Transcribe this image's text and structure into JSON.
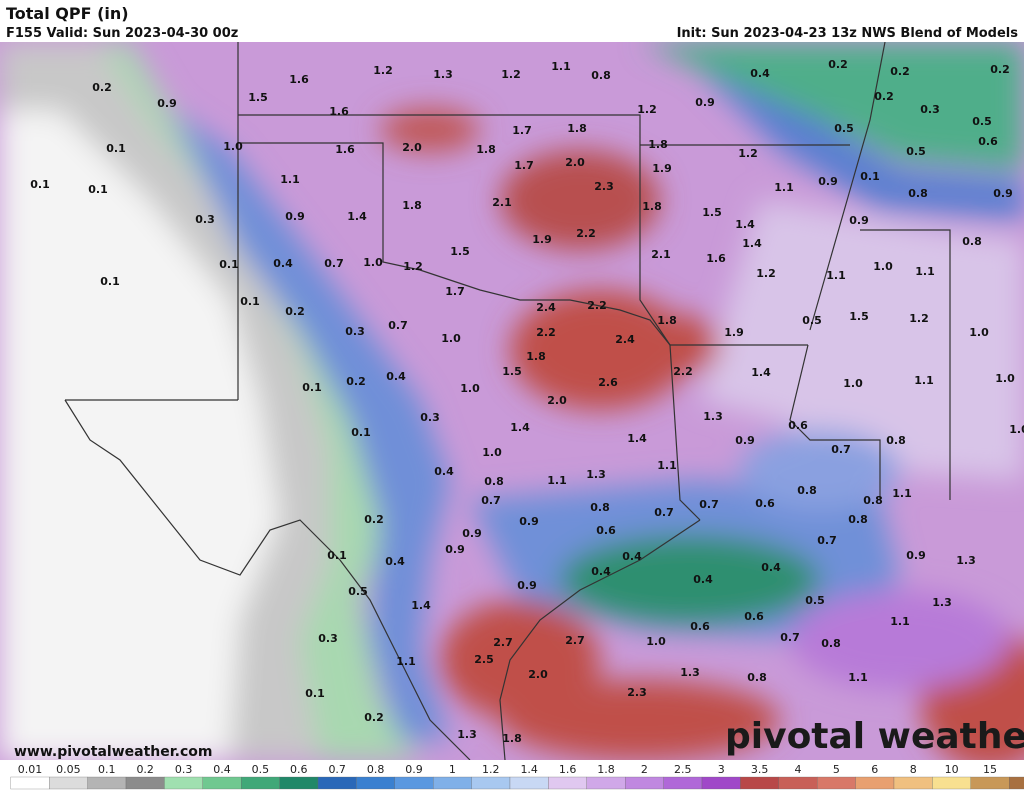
{
  "header": {
    "title": "Total QPF (in)",
    "valid": "F155 Valid: Sun 2023-04-30 00z",
    "init": "Init: Sun 2023-04-23 13z NWS Blend of Models"
  },
  "map": {
    "labels": [
      "0.2",
      "0.9",
      "1.5",
      "1.6",
      "1.2",
      "1.3",
      "1.2",
      "1.1",
      "0.8",
      "0.4",
      "0.2",
      "0.2",
      "0.2",
      "1.6",
      "1.2",
      "0.9",
      "0.2",
      "0.3",
      "0.5",
      "0.1",
      "1.0",
      "1.6",
      "2.0",
      "1.8",
      "1.7",
      "1.8",
      "1.8",
      "0.5",
      "0.5",
      "0.6",
      "1.2",
      "1.7",
      "2.0",
      "1.9",
      "0.1",
      "0.1",
      "1.1",
      "2.3",
      "1.1",
      "0.9",
      "0.1",
      "0.8",
      "0.9",
      "0.3",
      "0.9",
      "1.4",
      "1.8",
      "2.1",
      "1.8",
      "1.5",
      "1.4",
      "0.9",
      "1.9",
      "2.2",
      "1.4",
      "0.8",
      "0.1",
      "0.4",
      "0.7",
      "1.0",
      "1.2",
      "1.5",
      "2.1",
      "1.6",
      "1.2",
      "1.1",
      "1.0",
      "1.1",
      "0.1",
      "1.7",
      "0.1",
      "0.2",
      "2.4",
      "2.2",
      "1.8",
      "1.9",
      "0.5",
      "1.5",
      "1.2",
      "1.0",
      "0.3",
      "0.7",
      "1.0",
      "2.2",
      "2.4",
      "1.8",
      "1.5",
      "2.2",
      "1.4",
      "0.2",
      "0.4",
      "0.1",
      "2.6",
      "1.0",
      "1.1",
      "1.0",
      "1.0",
      "2.0",
      "0.3",
      "1.3",
      "0.6",
      "1.4",
      "1.4",
      "0.1",
      "0.9",
      "0.7",
      "0.8",
      "1.0",
      "1.0",
      "0.4",
      "1.1",
      "1.1",
      "1.3",
      "0.8",
      "0.7",
      "0.8",
      "0.7",
      "0.7",
      "0.6",
      "0.8",
      "0.8",
      "1.1",
      "0.2",
      "0.9",
      "0.8",
      "0.9",
      "0.6",
      "0.7",
      "0.1",
      "0.9",
      "0.4",
      "0.9",
      "1.3",
      "0.4",
      "0.4",
      "0.4",
      "0.4",
      "0.9",
      "0.5",
      "1.4",
      "0.5",
      "1.3",
      "0.6",
      "0.6",
      "1.1",
      "0.3",
      "2.7",
      "2.7",
      "1.0",
      "0.7",
      "0.8",
      "1.1",
      "2.5",
      "2.0",
      "1.3",
      "0.8",
      "1.1",
      "0.1",
      "2.3",
      "0.2",
      "1.3",
      "1.8"
    ]
  },
  "footer": {
    "website": "www.pivotalweather.com",
    "logo": "pivotal weather"
  },
  "colorbar": {
    "labels": [
      "0.01",
      "0.05",
      "0.1",
      "0.2",
      "0.3",
      "0.4",
      "0.5",
      "0.6",
      "0.7",
      "0.8",
      "0.9",
      "1",
      "1.2",
      "1.4",
      "1.6",
      "1.8",
      "2",
      "2.5",
      "3",
      "3.5",
      "4",
      "5",
      "6",
      "8",
      "10",
      "15"
    ]
  }
}
